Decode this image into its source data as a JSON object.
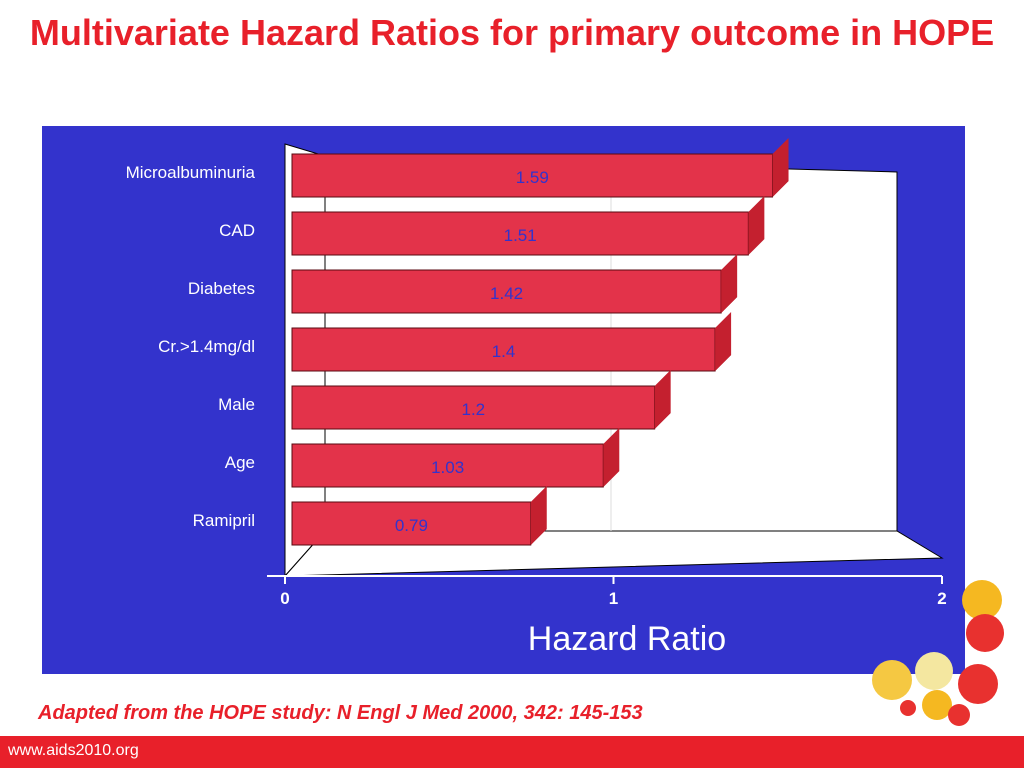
{
  "slide": {
    "title": "Multivariate Hazard Ratios for primary outcome in HOPE",
    "caption": "Adapted from the HOPE study: N Engl J Med 2000, 342: 145-153",
    "footer_url": "www.aids2010.org"
  },
  "colors": {
    "title": "#e8202a",
    "panel": "#3333cc",
    "bar": "#e3334a",
    "bar_top": "#a0101c",
    "data_label": "#3333cc",
    "footer_bar": "#e8202a"
  },
  "chart_data": {
    "type": "bar",
    "orientation": "horizontal",
    "categories": [
      "Microalbuminuria",
      "CAD",
      "Diabetes",
      "Cr.>1.4mg/dl",
      "Male",
      "Age",
      "Ramipril"
    ],
    "values": [
      1.59,
      1.51,
      1.42,
      1.4,
      1.2,
      1.03,
      0.79
    ],
    "data_labels": [
      "1.59",
      "1.51",
      "1.42",
      "1.4",
      "1.2",
      "1.03",
      "0.79"
    ],
    "xlabel": "Hazard Ratio",
    "xlim": [
      0,
      2
    ],
    "xticks": [
      "0",
      "1",
      "2"
    ],
    "grid": true,
    "style": "3d"
  }
}
